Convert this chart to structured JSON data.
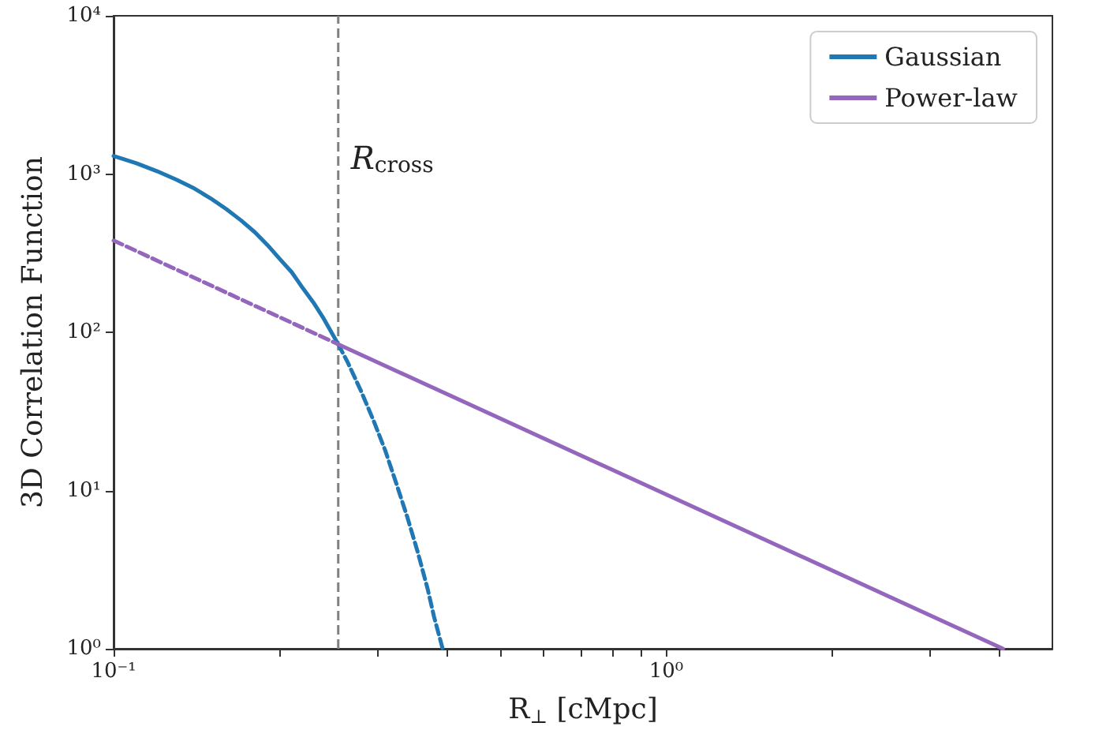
{
  "chart_data": {
    "type": "line",
    "xlabel": "R$_{⊥}$ [cMpc]",
    "ylabel": "3D Correlation Function",
    "series": [
      {
        "name": "Gaussian",
        "color": "#1f77b4",
        "x": [
          0.1,
          0.11,
          0.12,
          0.13,
          0.14,
          0.15,
          0.16,
          0.17,
          0.18,
          0.19,
          0.2,
          0.21,
          0.22,
          0.23,
          0.24,
          0.255
        ],
        "values": [
          1300,
          1170,
          1040,
          920,
          810,
          700,
          600,
          510,
          430,
          355,
          290,
          240,
          190,
          154,
          122,
          84
        ]
      },
      {
        "color": "#1f77b4",
        "line_style": "dashed",
        "x": [
          0.255,
          0.265,
          0.28,
          0.295,
          0.31,
          0.325,
          0.34,
          0.355,
          0.37,
          0.38,
          0.394
        ],
        "values": [
          84,
          65,
          43,
          28,
          18,
          11,
          6.8,
          4.1,
          2.4,
          1.6,
          1
        ]
      },
      {
        "name": "Power-law",
        "color": "#9467bd",
        "x": [
          0.255,
          4.07
        ],
        "values": [
          84,
          1
        ]
      },
      {
        "color": "#9467bd",
        "line_style": "dashed",
        "x": [
          0.1,
          0.255
        ],
        "values": [
          380,
          84
        ]
      }
    ],
    "ref_lines": [
      {
        "axis": "x",
        "value": 0.255,
        "label": "R$_{cross}$",
        "color": "#808080",
        "line_style": "dashed"
      }
    ],
    "log": "xy",
    "xlim": [
      0.1,
      5
    ],
    "ylim": [
      1,
      10000
    ],
    "xticks": [
      {
        "value": 0.1,
        "label": "10⁻¹"
      },
      {
        "value": 0.2,
        "label": null
      },
      {
        "value": 0.3,
        "label": null
      },
      {
        "value": 0.4,
        "label": null
      },
      {
        "value": 0.5,
        "label": null
      },
      {
        "value": 0.6,
        "label": null
      },
      {
        "value": 0.7,
        "label": null
      },
      {
        "value": 0.8,
        "label": null
      },
      {
        "value": 0.9,
        "label": null
      },
      {
        "value": 1,
        "label": "10⁰"
      },
      {
        "value": 2,
        "label": null
      },
      {
        "value": 3,
        "label": null
      },
      {
        "value": 4,
        "label": null
      }
    ],
    "yticks": [
      {
        "value": 1,
        "label": "10⁰"
      },
      {
        "value": 10,
        "label": "10¹"
      },
      {
        "value": 100,
        "label": "10²"
      },
      {
        "value": 1000,
        "label": "10³"
      },
      {
        "value": 10000,
        "label": "10⁴"
      }
    ],
    "legend": "top right",
    "grid": false,
    "marker": "none",
    "line_style": "solid"
  }
}
